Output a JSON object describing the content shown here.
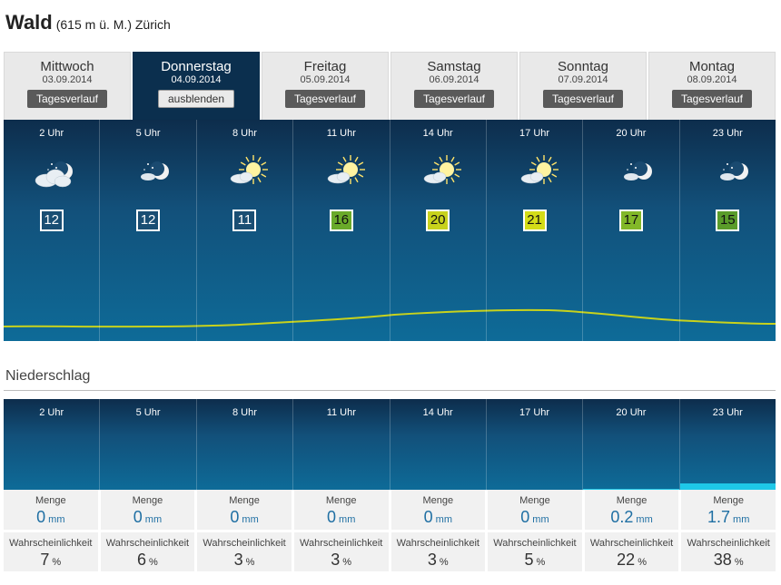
{
  "location": {
    "name": "Wald",
    "detail": "(615 m ü. M.) Zürich"
  },
  "days": [
    {
      "name": "Mittwoch",
      "date": "03.09.2014",
      "button": "Tagesverlauf",
      "active": false
    },
    {
      "name": "Donnerstag",
      "date": "04.09.2014",
      "button": "ausblenden",
      "active": true
    },
    {
      "name": "Freitag",
      "date": "05.09.2014",
      "button": "Tagesverlauf",
      "active": false
    },
    {
      "name": "Samstag",
      "date": "06.09.2014",
      "button": "Tagesverlauf",
      "active": false
    },
    {
      "name": "Sonntag",
      "date": "07.09.2014",
      "button": "Tagesverlauf",
      "active": false
    },
    {
      "name": "Montag",
      "date": "08.09.2014",
      "button": "Tagesverlauf",
      "active": false
    }
  ],
  "hourly": [
    {
      "hour": "2 Uhr",
      "icon": "cloudy-night-icon",
      "temp": 12,
      "temp_color": "#ffffff",
      "temp_bg": "#1a4e73",
      "temp_fg": "#ffffff"
    },
    {
      "hour": "5 Uhr",
      "icon": "night-partly-cloudy-icon",
      "temp": 12,
      "temp_color": "#ffffff",
      "temp_bg": "#1a4e73",
      "temp_fg": "#ffffff"
    },
    {
      "hour": "8 Uhr",
      "icon": "sunny-partly-cloudy-icon",
      "temp": 11,
      "temp_color": "#ffffff",
      "temp_bg": "#1a4e73",
      "temp_fg": "#ffffff"
    },
    {
      "hour": "11 Uhr",
      "icon": "sunny-partly-cloudy-icon",
      "temp": 16,
      "temp_color": "#6aaa2a",
      "temp_bg": "#6aaa2a",
      "temp_fg": "#111111"
    },
    {
      "hour": "14 Uhr",
      "icon": "sunny-partly-cloudy-icon",
      "temp": 20,
      "temp_color": "#c8d21c",
      "temp_bg": "#c8d21c",
      "temp_fg": "#111111"
    },
    {
      "hour": "17 Uhr",
      "icon": "sunny-partly-cloudy-icon",
      "temp": 21,
      "temp_color": "#d4dc18",
      "temp_bg": "#d4dc18",
      "temp_fg": "#111111"
    },
    {
      "hour": "20 Uhr",
      "icon": "night-partly-cloudy-icon",
      "temp": 17,
      "temp_color": "#82b828",
      "temp_bg": "#82b828",
      "temp_fg": "#111111"
    },
    {
      "hour": "23 Uhr",
      "icon": "night-partly-cloudy-icon",
      "temp": 15,
      "temp_color": "#5a9c2a",
      "temp_bg": "#5a9c2a",
      "temp_fg": "#111111"
    }
  ],
  "precip": {
    "title": "Niederschlag",
    "menge_label": "Menge",
    "menge_unit": "mm",
    "prob_label": "Wahrscheinlichkeit",
    "prob_unit": "%",
    "hours": [
      "2 Uhr",
      "5 Uhr",
      "8 Uhr",
      "11 Uhr",
      "14 Uhr",
      "17 Uhr",
      "20 Uhr",
      "23 Uhr"
    ],
    "amounts": [
      "0",
      "0",
      "0",
      "0",
      "0",
      "0",
      "0.2",
      "1.7"
    ],
    "probabilities": [
      "7",
      "6",
      "3",
      "3",
      "3",
      "5",
      "22",
      "38"
    ]
  },
  "colors": {
    "panel_dark": "#0d2d4c",
    "rain": "#1ec8e8",
    "curve": "#c8d21c"
  }
}
